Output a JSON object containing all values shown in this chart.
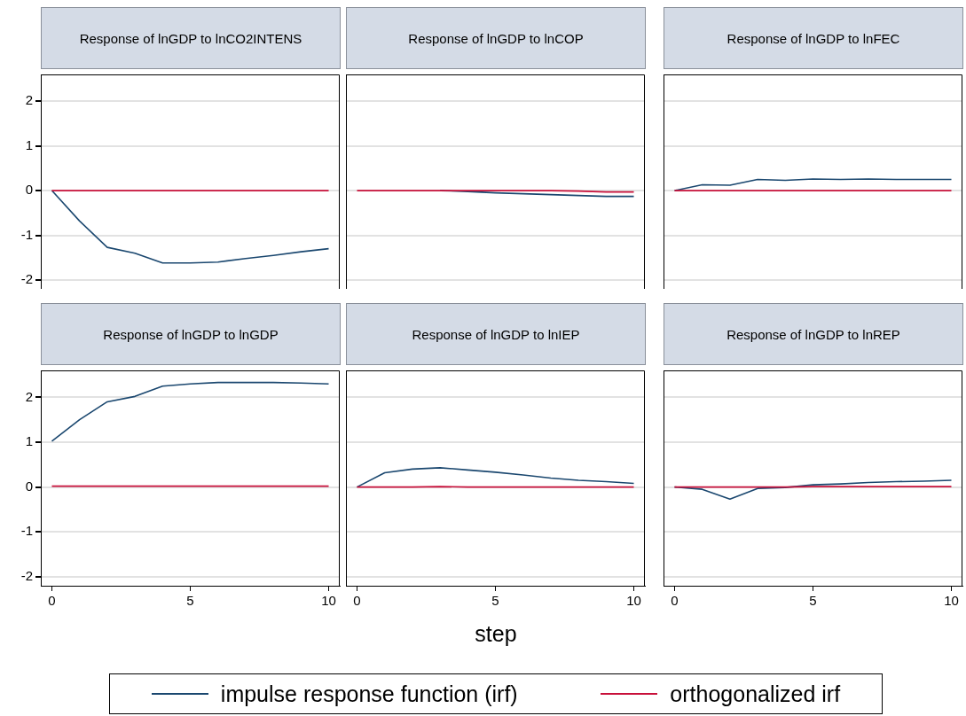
{
  "chart_data": [
    {
      "type": "line",
      "title": "Response of lnGDP to lnCO2INTENS",
      "legend": "bottom",
      "x": [
        0,
        1,
        2,
        3,
        4,
        5,
        6,
        7,
        8,
        9,
        10
      ],
      "xlim": [
        -0.4,
        10.4
      ],
      "xticks": [
        0,
        5,
        10
      ],
      "ylim": [
        -2.2,
        2.6
      ],
      "yticks": [
        -2,
        -1,
        0,
        1,
        2
      ],
      "grid": "y",
      "tick_labels": "y",
      "series": [
        {
          "name": "impulse response function (irf)",
          "color": "#1a476f",
          "values": [
            0,
            -0.68,
            -1.27,
            -1.4,
            -1.62,
            -1.62,
            -1.6,
            -1.52,
            -1.45,
            -1.37,
            -1.3
          ]
        },
        {
          "name": "orthogonalized irf",
          "color": "#c8103a",
          "values": [
            0,
            0,
            0,
            0,
            0,
            0,
            0,
            0,
            0,
            0,
            0
          ]
        }
      ]
    },
    {
      "type": "line",
      "title": "Response of lnGDP to lnCOP",
      "x": [
        0,
        1,
        2,
        3,
        4,
        5,
        6,
        7,
        8,
        9,
        10
      ],
      "xlim": [
        -0.4,
        10.4
      ],
      "xticks": [
        0,
        5,
        10
      ],
      "ylim": [
        -2.2,
        2.6
      ],
      "yticks": [
        -2,
        -1,
        0,
        1,
        2
      ],
      "grid": "y",
      "tick_labels": false,
      "series": [
        {
          "color": "#1a476f",
          "values": [
            null,
            null,
            null,
            0,
            -0.02,
            -0.05,
            -0.07,
            -0.09,
            -0.11,
            -0.13,
            -0.13
          ]
        },
        {
          "color": "#c8103a",
          "values": [
            0,
            0,
            0,
            0,
            0,
            0,
            0,
            0,
            -0.01,
            -0.03,
            -0.03
          ]
        }
      ]
    },
    {
      "type": "line",
      "title": "Response of lnGDP to lnFEC",
      "x": [
        0,
        1,
        2,
        3,
        4,
        5,
        6,
        7,
        8,
        9,
        10
      ],
      "xlim": [
        -0.4,
        10.4
      ],
      "xticks": [
        0,
        5,
        10
      ],
      "ylim": [
        -2.2,
        2.6
      ],
      "yticks": [
        -2,
        -1,
        0,
        1,
        2
      ],
      "grid": "y",
      "tick_labels": false,
      "series": [
        {
          "color": "#1a476f",
          "values": [
            0,
            0.13,
            0.12,
            0.25,
            0.23,
            0.26,
            0.25,
            0.26,
            0.25,
            0.25,
            0.25
          ]
        },
        {
          "color": "#c8103a",
          "values": [
            0,
            0,
            0,
            0,
            0,
            0,
            0,
            0,
            0,
            0,
            0
          ]
        }
      ]
    },
    {
      "type": "line",
      "title": "Response of lnGDP to lnGDP",
      "x": [
        0,
        1,
        2,
        3,
        4,
        5,
        6,
        7,
        8,
        9,
        10
      ],
      "xlim": [
        -0.4,
        10.4
      ],
      "xticks": [
        0,
        5,
        10
      ],
      "ylim": [
        -2.2,
        2.6
      ],
      "yticks": [
        -2,
        -1,
        0,
        1,
        2
      ],
      "grid": "y",
      "series": [
        {
          "color": "#1a476f",
          "values": [
            1.02,
            1.5,
            1.9,
            2.02,
            2.25,
            2.3,
            2.33,
            2.33,
            2.33,
            2.32,
            2.3
          ]
        },
        {
          "color": "#c8103a",
          "values": [
            0.02,
            0.02,
            0.02,
            0.02,
            0.02,
            0.02,
            0.02,
            0.02,
            0.02,
            0.02,
            0.02
          ]
        }
      ]
    },
    {
      "type": "line",
      "title": "Response of lnGDP to lnIEP",
      "xlabel": "step",
      "x": [
        0,
        1,
        2,
        3,
        4,
        5,
        6,
        7,
        8,
        9,
        10
      ],
      "xlim": [
        -0.4,
        10.4
      ],
      "xticks": [
        0,
        5,
        10
      ],
      "ylim": [
        -2.2,
        2.6
      ],
      "yticks": [
        -2,
        -1,
        0,
        1,
        2
      ],
      "grid": "y",
      "tick_labels": "x",
      "series": [
        {
          "color": "#1a476f",
          "values": [
            0,
            0.32,
            0.4,
            0.43,
            0.38,
            0.33,
            0.27,
            0.2,
            0.15,
            0.12,
            0.08
          ]
        },
        {
          "color": "#c8103a",
          "values": [
            0,
            0,
            0,
            0.01,
            0,
            0,
            0,
            0,
            0,
            0,
            0
          ]
        }
      ]
    },
    {
      "type": "line",
      "title": "Response of lnGDP to lnREP",
      "x": [
        0,
        1,
        2,
        3,
        4,
        5,
        6,
        7,
        8,
        9,
        10
      ],
      "xlim": [
        -0.4,
        10.4
      ],
      "xticks": [
        0,
        5,
        10
      ],
      "ylim": [
        -2.2,
        2.6
      ],
      "yticks": [
        -2,
        -1,
        0,
        1,
        2
      ],
      "grid": "y",
      "tick_labels": "x",
      "series": [
        {
          "color": "#1a476f",
          "values": [
            0,
            -0.05,
            -0.27,
            -0.03,
            -0.01,
            0.05,
            0.07,
            0.1,
            0.12,
            0.13,
            0.15
          ]
        },
        {
          "color": "#c8103a",
          "values": [
            0,
            0,
            0,
            0,
            0,
            0.01,
            0.01,
            0.01,
            0.01,
            0.01,
            0.01
          ]
        }
      ]
    }
  ]
}
